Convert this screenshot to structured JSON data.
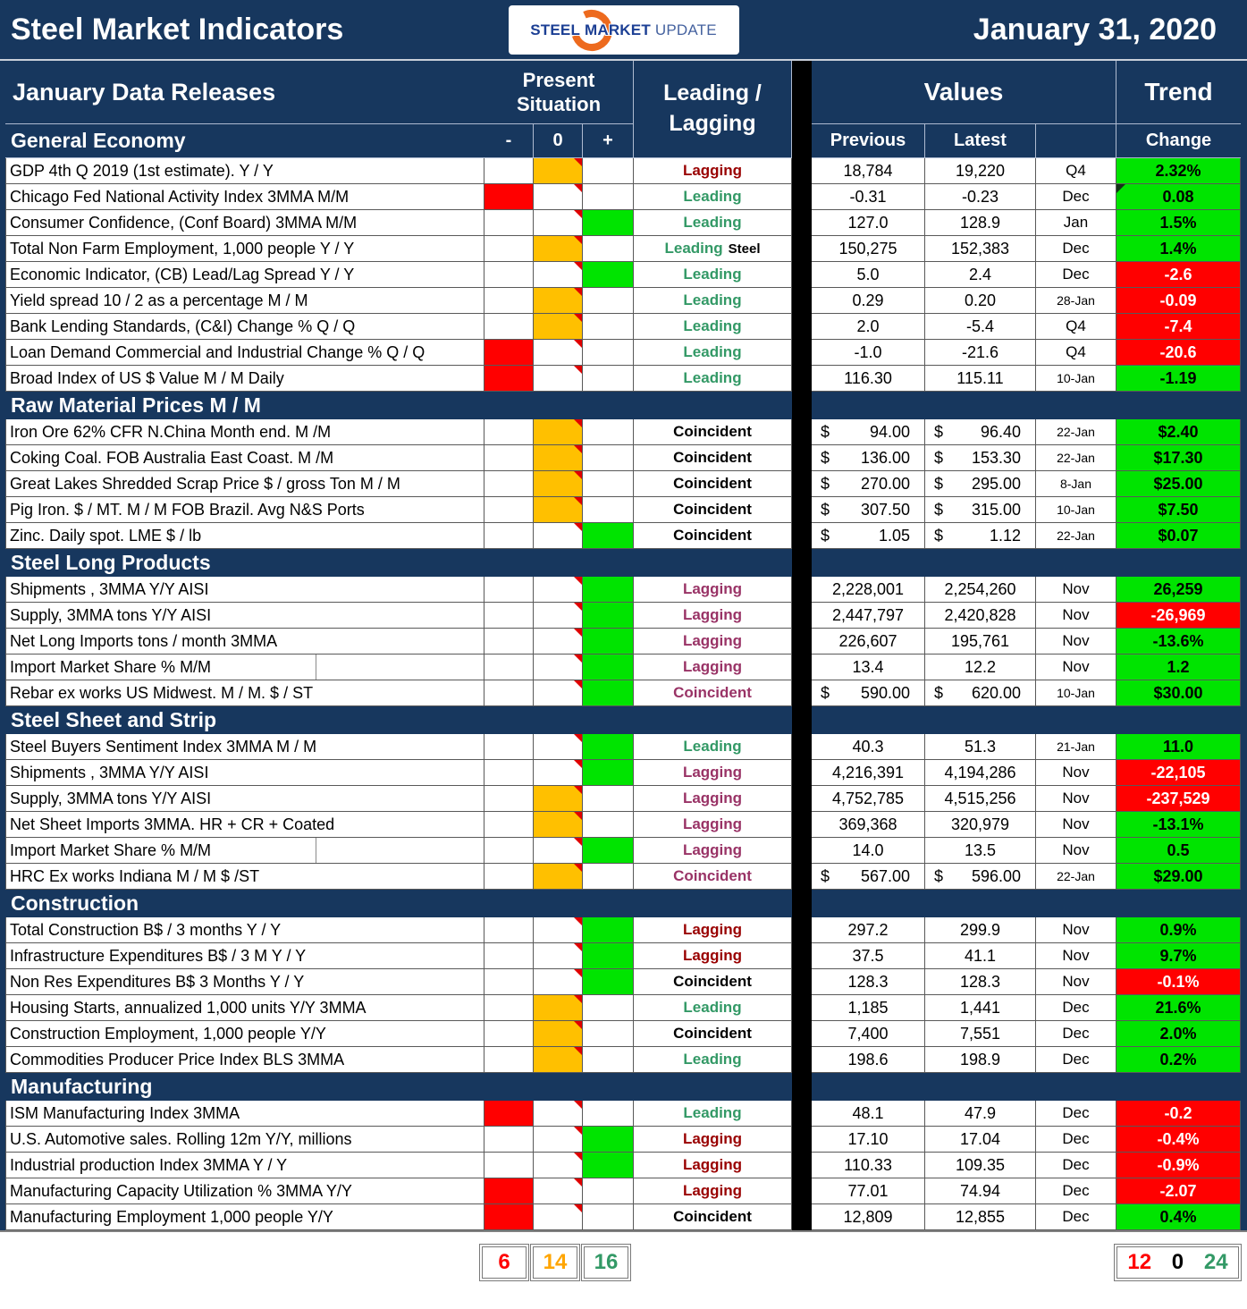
{
  "header": {
    "title": "Steel Market Indicators",
    "date": "January 31, 2020",
    "logo": {
      "word1": "STEEL",
      "word2": "MARKET",
      "word3": "UPDATE"
    },
    "columns": {
      "data_releases": "January Data Releases",
      "present_situation": "Present Situation",
      "leading_lagging": "Leading / Lagging",
      "values": "Values",
      "trend": "Trend",
      "minus": "-",
      "zero": "0",
      "plus": "+",
      "previous": "Previous",
      "latest": "Latest",
      "change": "Change"
    }
  },
  "colors": {
    "navy": "#17375E",
    "situation_negative": "#FF0000",
    "situation_neutral": "#FFC000",
    "situation_positive": "#00E400",
    "trend_up": "#00E400",
    "trend_down": "#FF0000",
    "leading_text": "#339966",
    "lagging_text_dark_red": "#990000",
    "lagging_text_purple": "#993366",
    "coincident_text": "#000000"
  },
  "sections": [
    {
      "title": "General Economy",
      "rows": [
        {
          "label": "GDP 4th Q 2019 (1st estimate). Y / Y",
          "situation": "zero",
          "classification": "Lagging",
          "class_color": "darkred",
          "previous": "18,784",
          "latest": "19,220",
          "period": "Q4",
          "trend": "2.32%",
          "trend_color": "green"
        },
        {
          "label": "Chicago Fed National Activity Index 3MMA M/M",
          "situation": "minus",
          "classification": "Leading",
          "class_color": "green",
          "previous": "-0.31",
          "latest": "-0.23",
          "period": "Dec",
          "trend": "0.08",
          "trend_color": "green",
          "trend_corner": true
        },
        {
          "label": "Consumer Confidence, (Conf Board) 3MMA M/M",
          "situation": "plus",
          "classification": "Leading",
          "class_color": "green",
          "previous": "127.0",
          "latest": "128.9",
          "period": "Jan",
          "trend": "1.5%",
          "trend_color": "green"
        },
        {
          "label": "Total Non Farm Employment, 1,000 people Y / Y",
          "situation": "zero",
          "classification": "Leading",
          "classification_suffix": "Steel",
          "class_color": "green",
          "previous": "150,275",
          "latest": "152,383",
          "period": "Dec",
          "trend": "1.4%",
          "trend_color": "green"
        },
        {
          "label": "Economic Indicator, (CB) Lead/Lag Spread Y / Y",
          "situation": "plus",
          "classification": "Leading",
          "class_color": "green",
          "previous": "5.0",
          "latest": "2.4",
          "period": "Dec",
          "trend": "-2.6",
          "trend_color": "red"
        },
        {
          "label": "Yield spread 10 / 2 as a percentage M / M",
          "situation": "zero",
          "classification": "Leading",
          "class_color": "green",
          "previous": "0.29",
          "latest": "0.20",
          "period": "28-Jan",
          "trend": "-0.09",
          "trend_color": "red"
        },
        {
          "label": "Bank Lending Standards, (C&I) Change % Q / Q",
          "situation": "zero",
          "classification": "Leading",
          "class_color": "green",
          "previous": "2.0",
          "latest": "-5.4",
          "period": "Q4",
          "trend": "-7.4",
          "trend_color": "red"
        },
        {
          "label": "Loan Demand Commercial and Industrial Change % Q / Q",
          "situation": "minus",
          "classification": "Leading",
          "class_color": "green",
          "previous": "-1.0",
          "latest": "-21.6",
          "period": "Q4",
          "trend": "-20.6",
          "trend_color": "red"
        },
        {
          "label": "Broad Index of US $ Value M / M Daily",
          "situation": "minus",
          "classification": "Leading",
          "class_color": "green",
          "previous": "116.30",
          "latest": "115.11",
          "period": "10-Jan",
          "trend": "-1.19",
          "trend_color": "green"
        }
      ]
    },
    {
      "title": "Raw Material Prices M / M",
      "rows": [
        {
          "label": "Iron Ore 62% CFR N.China Month end. M /M",
          "situation": "zero",
          "classification": "Coincident",
          "class_color": "black",
          "dollar": true,
          "previous": "94.00",
          "latest": "96.40",
          "period": "22-Jan",
          "trend": "$2.40",
          "trend_color": "green"
        },
        {
          "label": "Coking Coal. FOB Australia East Coast. M /M",
          "situation": "zero",
          "classification": "Coincident",
          "class_color": "black",
          "dollar": true,
          "previous": "136.00",
          "latest": "153.30",
          "period": "22-Jan",
          "trend": "$17.30",
          "trend_color": "green"
        },
        {
          "label": "Great Lakes Shredded Scrap Price $ / gross Ton M / M",
          "situation": "zero",
          "classification": "Coincident",
          "class_color": "black",
          "dollar": true,
          "previous": "270.00",
          "latest": "295.00",
          "period": "8-Jan",
          "trend": "$25.00",
          "trend_color": "green"
        },
        {
          "label": "Pig Iron. $ / MT. M / M FOB Brazil. Avg N&S Ports",
          "situation": "zero",
          "classification": "Coincident",
          "class_color": "black",
          "dollar": true,
          "previous": "307.50",
          "latest": "315.00",
          "period": "10-Jan",
          "trend": "$7.50",
          "trend_color": "green"
        },
        {
          "label": "Zinc. Daily spot. LME $ / lb",
          "situation": "plus",
          "classification": "Coincident",
          "class_color": "black",
          "dollar": true,
          "previous": "1.05",
          "latest": "1.12",
          "period": "22-Jan",
          "trend": "$0.07",
          "trend_color": "green"
        }
      ]
    },
    {
      "title": "Steel Long Products",
      "rows": [
        {
          "label": "Shipments , 3MMA Y/Y AISI",
          "situation": "plus",
          "classification": "Lagging",
          "class_color": "purple",
          "previous": "2,228,001",
          "latest": "2,254,260",
          "period": "Nov",
          "trend": "26,259",
          "trend_color": "green"
        },
        {
          "label": "Supply, 3MMA tons Y/Y AISI",
          "situation": "plus",
          "classification": "Lagging",
          "class_color": "purple",
          "previous": "2,447,797",
          "latest": "2,420,828",
          "period": "Nov",
          "trend": "-26,969",
          "trend_color": "red"
        },
        {
          "label": "Net Long Imports tons / month 3MMA",
          "situation": "plus",
          "classification": "Lagging",
          "class_color": "purple",
          "previous": "226,607",
          "latest": "195,761",
          "period": "Nov",
          "trend": "-13.6%",
          "trend_color": "green"
        },
        {
          "label": "Import Market Share %  M/M",
          "situation": "plus",
          "classification": "Lagging",
          "class_color": "purple",
          "previous": "13.4",
          "latest": "12.2",
          "period": "Nov",
          "trend": "1.2",
          "trend_color": "green",
          "label_split": true
        },
        {
          "label": "Rebar ex works US  Midwest. M / M. $ / ST",
          "situation": "plus",
          "classification": "Coincident",
          "class_color": "purple",
          "dollar": true,
          "previous": "590.00",
          "latest": "620.00",
          "period": "10-Jan",
          "trend": "$30.00",
          "trend_color": "green"
        }
      ]
    },
    {
      "title": "Steel Sheet and Strip",
      "rows": [
        {
          "label": "Steel Buyers Sentiment Index 3MMA M / M",
          "situation": "plus",
          "classification": "Leading",
          "class_color": "green",
          "previous": "40.3",
          "latest": "51.3",
          "period": "21-Jan",
          "trend": "11.0",
          "trend_color": "green"
        },
        {
          "label": "Shipments , 3MMA Y/Y AISI",
          "situation": "plus",
          "classification": "Lagging",
          "class_color": "purple",
          "previous": "4,216,391",
          "latest": "4,194,286",
          "period": "Nov",
          "trend": "-22,105",
          "trend_color": "red"
        },
        {
          "label": "Supply, 3MMA tons Y/Y AISI",
          "situation": "zero",
          "classification": "Lagging",
          "class_color": "purple",
          "previous": "4,752,785",
          "latest": "4,515,256",
          "period": "Nov",
          "trend": "-237,529",
          "trend_color": "red"
        },
        {
          "label": "Net Sheet Imports  3MMA. HR + CR + Coated",
          "situation": "zero",
          "classification": "Lagging",
          "class_color": "purple",
          "previous": "369,368",
          "latest": "320,979",
          "period": "Nov",
          "trend": "-13.1%",
          "trend_color": "green"
        },
        {
          "label": "Import Market Share % M/M",
          "situation": "plus",
          "classification": "Lagging",
          "class_color": "purple",
          "previous": "14.0",
          "latest": "13.5",
          "period": "Nov",
          "trend": "0.5",
          "trend_color": "green",
          "label_split": true
        },
        {
          "label": "HRC Ex works Indiana M / M $ /ST",
          "situation": "zero",
          "classification": "Coincident",
          "class_color": "purple",
          "dollar": true,
          "previous": "567.00",
          "latest": "596.00",
          "period": "22-Jan",
          "trend": "$29.00",
          "trend_color": "green"
        }
      ]
    },
    {
      "title": "Construction",
      "rows": [
        {
          "label": "Total Construction B$ /  3 months Y / Y",
          "situation": "plus",
          "classification": "Lagging",
          "class_color": "darkred",
          "previous": "297.2",
          "latest": "299.9",
          "period": "Nov",
          "trend": "0.9%",
          "trend_color": "green"
        },
        {
          "label": "Infrastructure Expenditures B$ / 3 M    Y / Y",
          "situation": "plus",
          "classification": "Lagging",
          "class_color": "darkred",
          "previous": "37.5",
          "latest": "41.1",
          "period": "Nov",
          "trend": "9.7%",
          "trend_color": "green"
        },
        {
          "label": "Non Res Expenditures B$  3 Months   Y / Y",
          "situation": "plus",
          "classification": "Coincident",
          "class_color": "black",
          "previous": "128.3",
          "latest": "128.3",
          "period": "Nov",
          "trend": "-0.1%",
          "trend_color": "red"
        },
        {
          "label": "Housing Starts, annualized 1,000 units Y/Y 3MMA",
          "situation": "zero",
          "classification": "Leading",
          "class_color": "green",
          "previous": "1,185",
          "latest": "1,441",
          "period": "Dec",
          "trend": "21.6%",
          "trend_color": "green"
        },
        {
          "label": "Construction Employment, 1,000 people Y/Y",
          "situation": "zero",
          "classification": "Coincident",
          "class_color": "black",
          "previous": "7,400",
          "latest": "7,551",
          "period": "Dec",
          "trend": "2.0%",
          "trend_color": "green"
        },
        {
          "label": "Commodities Producer Price Index BLS 3MMA",
          "situation": "zero",
          "classification": "Leading",
          "class_color": "green",
          "previous": "198.6",
          "latest": "198.9",
          "period": "Dec",
          "trend": "0.2%",
          "trend_color": "green"
        }
      ]
    },
    {
      "title": "Manufacturing",
      "rows": [
        {
          "label": "ISM Manufacturing Index 3MMA",
          "situation": "minus",
          "classification": "Leading",
          "class_color": "green",
          "previous": "48.1",
          "latest": "47.9",
          "period": "Dec",
          "trend": "-0.2",
          "trend_color": "red"
        },
        {
          "label": "U.S. Automotive sales. Rolling 12m Y/Y, millions",
          "situation": "plus",
          "classification": "Lagging",
          "class_color": "darkred",
          "previous": "17.10",
          "latest": "17.04",
          "period": "Dec",
          "trend": "-0.4%",
          "trend_color": "red"
        },
        {
          "label": "Industrial production Index 3MMA Y / Y",
          "situation": "plus",
          "classification": "Lagging",
          "class_color": "darkred",
          "previous": "110.33",
          "latest": "109.35",
          "period": "Dec",
          "trend": "-0.9%",
          "trend_color": "red"
        },
        {
          "label": "Manufacturing Capacity Utilization % 3MMA Y/Y",
          "situation": "minus",
          "classification": "Lagging",
          "class_color": "darkred",
          "previous": "77.01",
          "latest": "74.94",
          "period": "Dec",
          "trend": "-2.07",
          "trend_color": "red"
        },
        {
          "label": "Manufacturing Employment 1,000 people Y/Y",
          "situation": "minus",
          "classification": "Coincident",
          "class_color": "black",
          "previous": "12,809",
          "latest": "12,855",
          "period": "Dec",
          "trend": "0.4%",
          "trend_color": "green"
        }
      ]
    }
  ],
  "summary": {
    "situation_counts": {
      "negative": "6",
      "neutral": "14",
      "positive": "16"
    },
    "trend_counts": {
      "down": "12",
      "zero": "0",
      "up": "24"
    }
  }
}
